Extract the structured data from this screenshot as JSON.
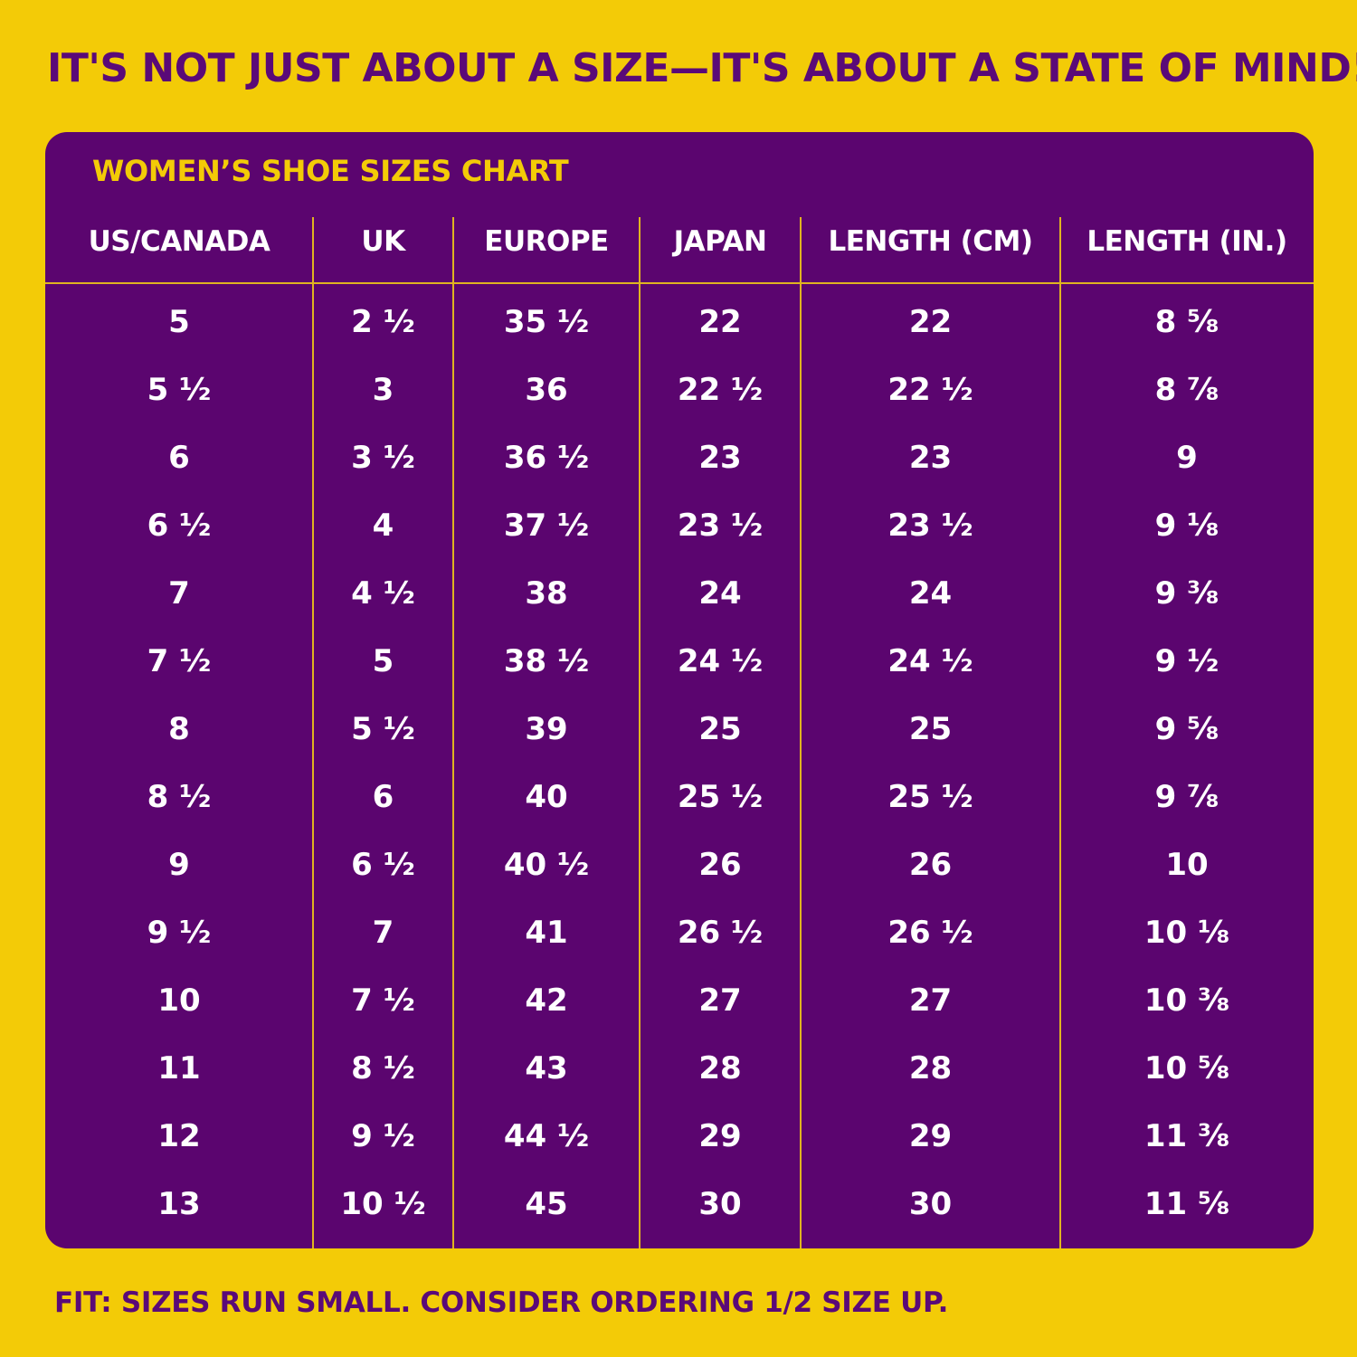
{
  "headline": "IT'S NOT JUST ABOUT A SIZE—IT'S ABOUT A STATE OF MIND!",
  "chart_title": "WOMEN’S SHOE SIZES CHART",
  "footnote": "FIT: SIZES RUN SMALL. CONSIDER ORDERING 1/2 SIZE UP.",
  "colors": {
    "background": "#f3cb07",
    "panel": "#5b056f",
    "accent": "#e0b420",
    "text": "#ffffff",
    "headline": "#5a0a78"
  },
  "table": {
    "columns": [
      "US/CANADA",
      "UK",
      "EUROPE",
      "JAPAN",
      "LENGTH (CM)",
      "LENGTH (IN.)"
    ],
    "rows": [
      [
        "5",
        "2 ½",
        "35 ½",
        "22",
        "22",
        "8 ⅝"
      ],
      [
        "5 ½",
        "3",
        "36",
        "22 ½",
        "22 ½",
        "8 ⅞"
      ],
      [
        "6",
        "3 ½",
        "36 ½",
        "23",
        "23",
        "9"
      ],
      [
        "6 ½",
        "4",
        "37 ½",
        "23 ½",
        "23 ½",
        "9 ⅛"
      ],
      [
        "7",
        "4 ½",
        "38",
        "24",
        "24",
        "9 ⅜"
      ],
      [
        "7 ½",
        "5",
        "38 ½",
        "24 ½",
        "24 ½",
        "9 ½"
      ],
      [
        "8",
        "5 ½",
        "39",
        "25",
        "25",
        "9 ⅝"
      ],
      [
        "8 ½",
        "6",
        "40",
        "25 ½",
        "25 ½",
        "9 ⅞"
      ],
      [
        "9",
        "6 ½",
        "40 ½",
        "26",
        "26",
        "10"
      ],
      [
        "9 ½",
        "7",
        "41",
        "26 ½",
        "26 ½",
        "10 ⅛"
      ],
      [
        "10",
        "7 ½",
        "42",
        "27",
        "27",
        "10 ⅜"
      ],
      [
        "11",
        "8 ½",
        "43",
        "28",
        "28",
        "10 ⅝"
      ],
      [
        "12",
        "9 ½",
        "44 ½",
        "29",
        "29",
        "11 ⅜"
      ],
      [
        "13",
        "10 ½",
        "45",
        "30",
        "30",
        "11 ⅝"
      ]
    ]
  }
}
